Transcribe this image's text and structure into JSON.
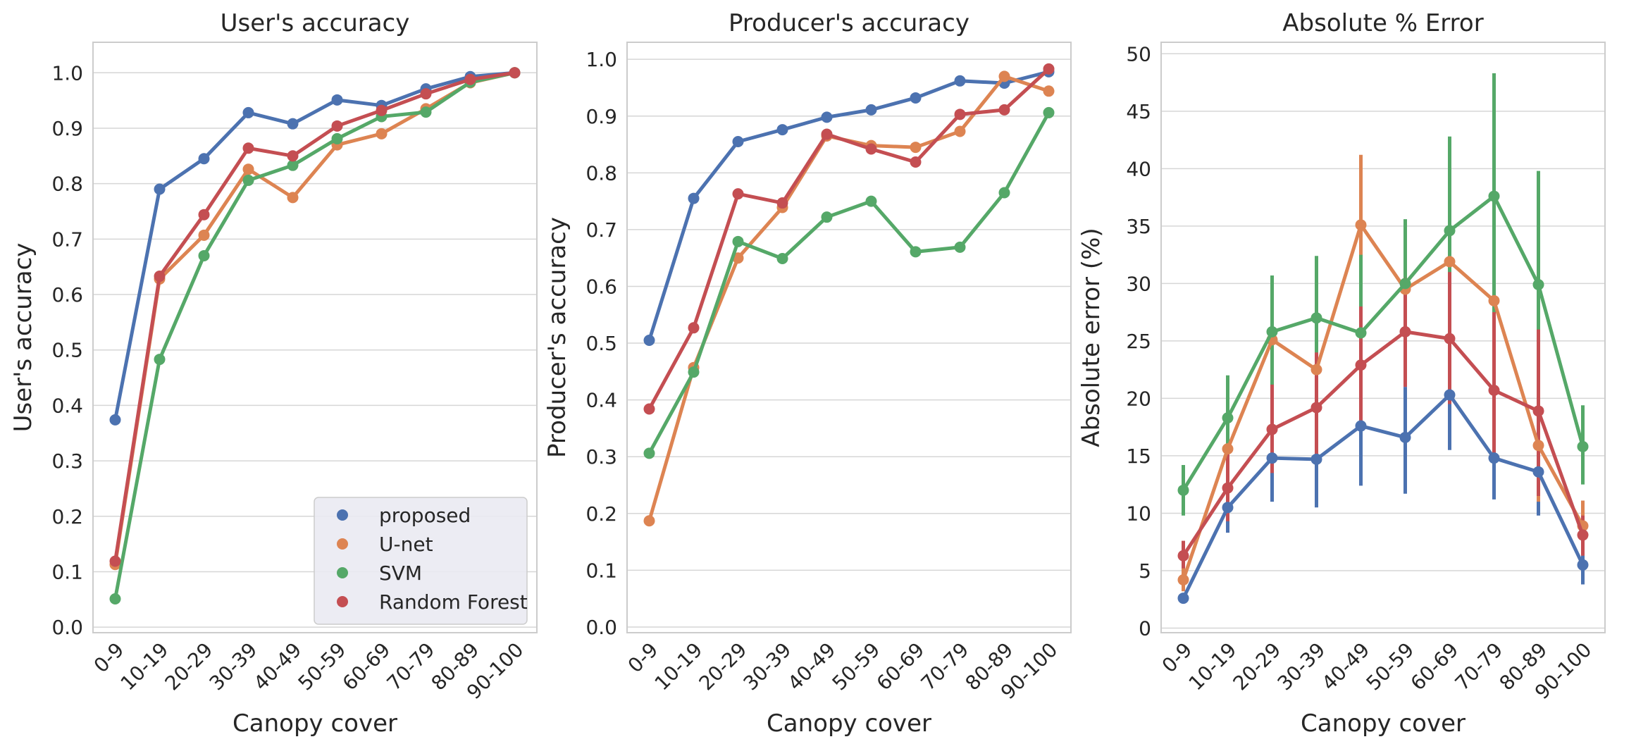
{
  "chart_data": [
    {
      "type": "line",
      "title": "User's accuracy",
      "xlabel": "Canopy cover",
      "ylabel": "User's accuracy",
      "categories": [
        "0-9",
        "10-19",
        "20-29",
        "30-39",
        "40-49",
        "50-59",
        "60-69",
        "70-79",
        "80-89",
        "90-100"
      ],
      "ylim": [
        -0.01,
        1.055
      ],
      "yticks": [
        "0.0",
        "0.1",
        "0.2",
        "0.3",
        "0.4",
        "0.5",
        "0.6",
        "0.7",
        "0.8",
        "0.9",
        "1.0"
      ],
      "grid": true,
      "legend": "lower-right",
      "series": [
        {
          "name": "proposed",
          "color": "#4c72b0",
          "values": [
            0.374,
            0.79,
            0.845,
            0.928,
            0.908,
            0.951,
            0.941,
            0.971,
            0.993,
            1.0
          ]
        },
        {
          "name": "U-net",
          "color": "#dd8452",
          "values": [
            0.113,
            0.628,
            0.707,
            0.826,
            0.775,
            0.87,
            0.89,
            0.935,
            0.982,
            1.0
          ]
        },
        {
          "name": "SVM",
          "color": "#55a868",
          "values": [
            0.051,
            0.483,
            0.67,
            0.806,
            0.833,
            0.881,
            0.921,
            0.929,
            0.983,
            1.0
          ]
        },
        {
          "name": "Random Forest",
          "color": "#c44e52",
          "values": [
            0.119,
            0.633,
            0.744,
            0.864,
            0.85,
            0.904,
            0.932,
            0.962,
            0.988,
            1.0
          ]
        }
      ]
    },
    {
      "type": "line",
      "title": "Producer's accuracy",
      "xlabel": "Canopy cover",
      "ylabel": "Producer's accuracy",
      "categories": [
        "0-9",
        "10-19",
        "20-29",
        "30-39",
        "40-49",
        "50-59",
        "60-69",
        "70-79",
        "80-89",
        "90-100"
      ],
      "ylim": [
        -0.01,
        1.03
      ],
      "yticks": [
        "0.0",
        "0.1",
        "0.2",
        "0.3",
        "0.4",
        "0.5",
        "0.6",
        "0.7",
        "0.8",
        "0.9",
        "1.0"
      ],
      "grid": true,
      "series": [
        {
          "name": "proposed",
          "color": "#4c72b0",
          "values": [
            0.505,
            0.755,
            0.855,
            0.876,
            0.898,
            0.911,
            0.932,
            0.962,
            0.958,
            0.978
          ]
        },
        {
          "name": "U-net",
          "color": "#dd8452",
          "values": [
            0.187,
            0.457,
            0.65,
            0.739,
            0.865,
            0.848,
            0.845,
            0.873,
            0.97,
            0.944
          ]
        },
        {
          "name": "SVM",
          "color": "#55a868",
          "values": [
            0.306,
            0.449,
            0.679,
            0.649,
            0.722,
            0.75,
            0.661,
            0.669,
            0.765,
            0.906
          ]
        },
        {
          "name": "Random Forest",
          "color": "#c44e52",
          "values": [
            0.384,
            0.527,
            0.763,
            0.747,
            0.868,
            0.842,
            0.819,
            0.903,
            0.911,
            0.983
          ]
        }
      ]
    },
    {
      "type": "line",
      "title": "Absolute % Error",
      "xlabel": "Canopy cover",
      "ylabel": "Absolute error (%)",
      "categories": [
        "0-9",
        "10-19",
        "20-29",
        "30-39",
        "40-49",
        "50-59",
        "60-69",
        "70-79",
        "80-89",
        "90-100"
      ],
      "ylim": [
        -0.4,
        51.0
      ],
      "yticks": [
        "0",
        "5",
        "10",
        "15",
        "20",
        "25",
        "30",
        "35",
        "40",
        "45",
        "50"
      ],
      "grid": true,
      "error_bars": true,
      "series": [
        {
          "name": "proposed",
          "color": "#4c72b0",
          "values": [
            2.6,
            10.5,
            14.8,
            14.7,
            17.6,
            16.6,
            20.3,
            14.8,
            13.6,
            5.5
          ],
          "err_low": [
            2.2,
            8.3,
            11.0,
            10.5,
            12.4,
            11.7,
            15.5,
            11.2,
            9.8,
            3.8
          ],
          "err_high": [
            3.0,
            12.6,
            18.5,
            18.8,
            22.8,
            21.0,
            25.5,
            18.6,
            17.6,
            7.5
          ]
        },
        {
          "name": "U-net",
          "color": "#dd8452",
          "values": [
            4.2,
            15.6,
            25.1,
            22.5,
            35.1,
            29.5,
            31.9,
            28.5,
            15.9,
            8.9
          ],
          "err_low": [
            3.2,
            11.0,
            18.0,
            16.5,
            27.5,
            22.5,
            24.5,
            21.0,
            11.0,
            6.6
          ],
          "err_high": [
            5.8,
            20.5,
            30.5,
            28.5,
            41.2,
            35.5,
            39.5,
            36.0,
            21.0,
            11.1
          ]
        },
        {
          "name": "SVM",
          "color": "#55a868",
          "values": [
            12.0,
            18.3,
            25.8,
            27.0,
            25.7,
            30.0,
            34.6,
            37.6,
            29.9,
            15.8
          ],
          "err_low": [
            9.8,
            14.5,
            20.0,
            21.5,
            18.5,
            23.5,
            26.5,
            27.5,
            19.5,
            12.5
          ],
          "err_high": [
            14.2,
            22.0,
            30.7,
            32.4,
            32.5,
            35.6,
            42.8,
            48.3,
            39.8,
            19.4
          ]
        },
        {
          "name": "Random Forest",
          "color": "#c44e52",
          "values": [
            6.3,
            12.2,
            17.3,
            19.2,
            22.9,
            25.8,
            25.2,
            20.7,
            18.9,
            8.1
          ],
          "err_low": [
            5.2,
            9.3,
            13.5,
            14.5,
            17.5,
            21.0,
            19.5,
            14.5,
            11.5,
            6.3
          ],
          "err_high": [
            7.6,
            15.2,
            21.2,
            24.0,
            28.0,
            30.5,
            31.0,
            27.5,
            26.0,
            9.8
          ]
        }
      ]
    }
  ]
}
